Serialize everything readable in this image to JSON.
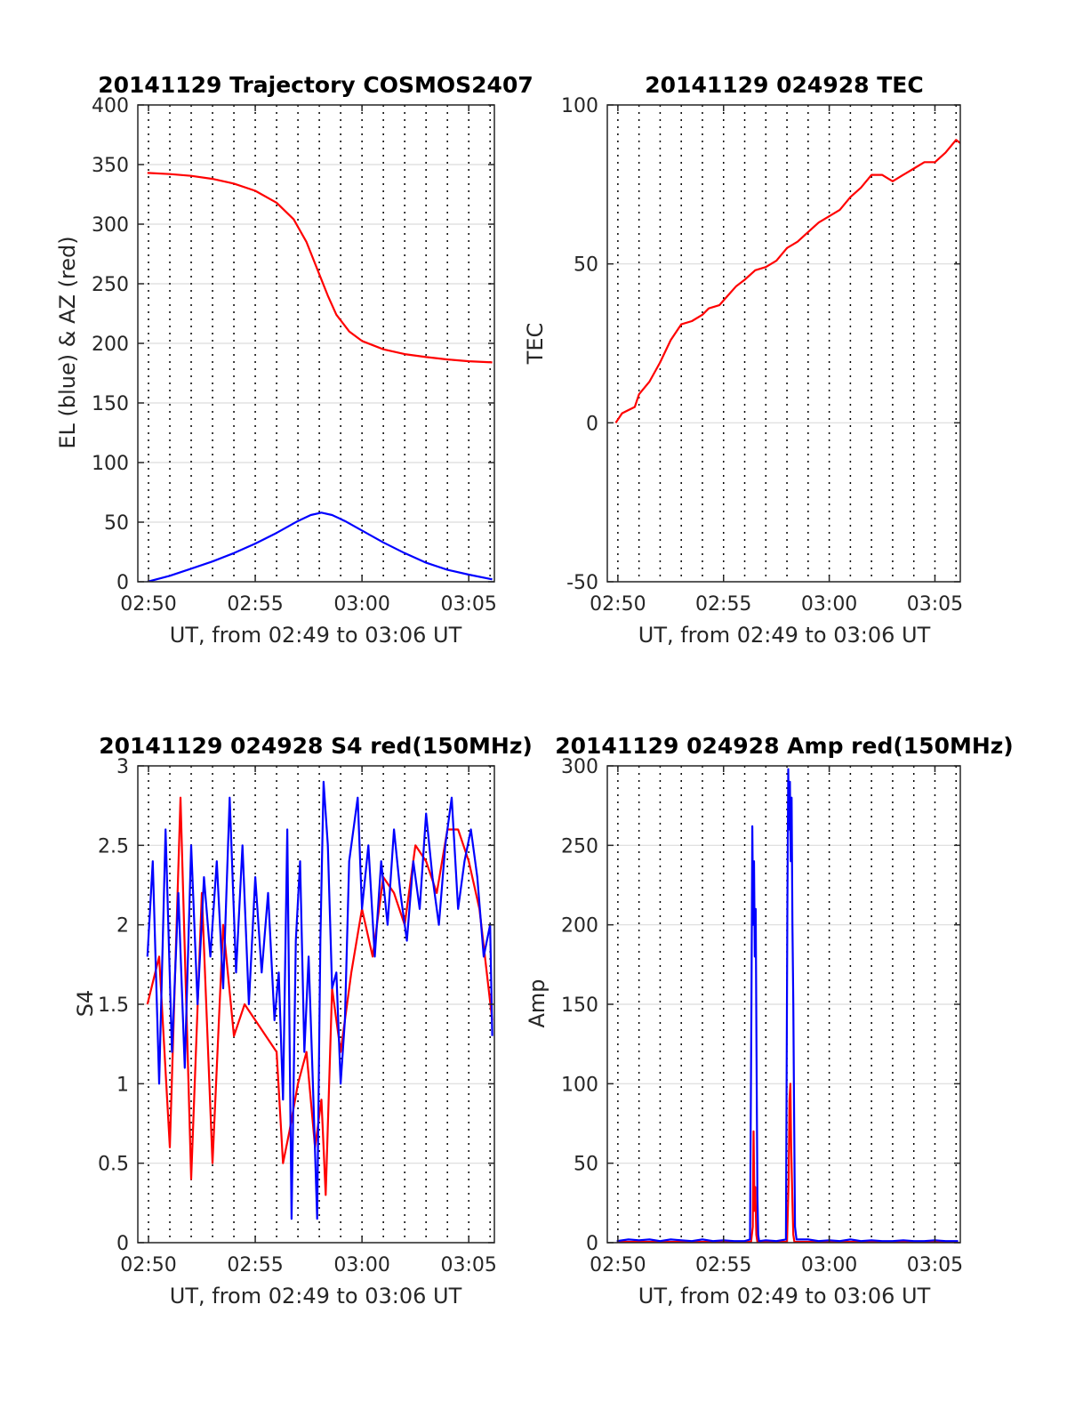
{
  "chart_data": [
    {
      "type": "line",
      "title": "20141129 Trajectory COSMOS2407",
      "xlabel": "UT, from 02:49 to 03:06 UT",
      "ylabel": "EL (blue) & AZ (red)",
      "xlim": [
        49.5,
        66.2
      ],
      "ylim": [
        0,
        400
      ],
      "xticks": [
        50,
        55,
        60,
        65
      ],
      "xtick_labels": [
        "02:50",
        "02:55",
        "03:00",
        "03:05"
      ],
      "yticks": [
        0,
        50,
        100,
        150,
        200,
        250,
        300,
        350,
        400
      ],
      "ytick_labels": [
        "0",
        "50",
        "100",
        "150",
        "200",
        "250",
        "300",
        "350",
        "400"
      ],
      "grid": true,
      "dotted_vlines": [
        50,
        51,
        52,
        53,
        54,
        55,
        56,
        57,
        58,
        59,
        60,
        61,
        62,
        63,
        64,
        65,
        66
      ],
      "series": [
        {
          "color": "#ff0000",
          "x": [
            49.95,
            51,
            52,
            53,
            54,
            55,
            56,
            56.8,
            57.4,
            58,
            58.4,
            58.8,
            59.4,
            60,
            61,
            62,
            63,
            64,
            65,
            66.1
          ],
          "y": [
            343,
            342,
            340.5,
            338,
            334,
            328,
            318,
            304,
            285,
            258,
            240,
            224,
            210,
            202,
            195,
            191,
            188.5,
            186.5,
            185,
            184
          ]
        },
        {
          "color": "#0000ff",
          "x": [
            49.95,
            51,
            52,
            53,
            54,
            55,
            56,
            57,
            57.6,
            58.1,
            58.6,
            59.2,
            60,
            61,
            62,
            63,
            64,
            65,
            66.1
          ],
          "y": [
            0,
            5,
            11,
            17,
            24,
            32,
            41,
            51,
            56,
            58,
            56,
            51,
            43,
            33,
            24,
            16,
            10,
            6,
            2
          ]
        }
      ]
    },
    {
      "type": "line",
      "title": "20141129 024928 TEC",
      "xlabel": "UT, from 02:49 to 03:06 UT",
      "ylabel": "TEC",
      "xlim": [
        49.5,
        66.2
      ],
      "ylim": [
        -50,
        100
      ],
      "xticks": [
        50,
        55,
        60,
        65
      ],
      "xtick_labels": [
        "02:50",
        "02:55",
        "03:00",
        "03:05"
      ],
      "yticks": [
        -50,
        0,
        50,
        100
      ],
      "ytick_labels": [
        "-50",
        "0",
        "50",
        "100"
      ],
      "grid": true,
      "dotted_vlines": [
        50,
        51,
        52,
        53,
        54,
        55,
        56,
        57,
        58,
        59,
        60,
        61,
        62,
        63,
        64,
        65,
        66
      ],
      "series": [
        {
          "color": "#ff0000",
          "x": [
            49.9,
            50.2,
            50.5,
            50.8,
            51,
            51.5,
            52,
            52.5,
            53,
            53.5,
            54,
            54.3,
            54.8,
            55.2,
            55.6,
            56,
            56.5,
            57,
            57.5,
            58,
            58.5,
            59,
            59.5,
            60,
            60.5,
            61,
            61.5,
            62,
            62.5,
            63,
            63.5,
            64,
            64.5,
            65,
            65.5,
            66,
            66.2
          ],
          "y": [
            0,
            3,
            4,
            5,
            9,
            13,
            19,
            26,
            31,
            32,
            34,
            36,
            37,
            40,
            43,
            45,
            48,
            49,
            51,
            55,
            57,
            60,
            63,
            65,
            67,
            71,
            74,
            78,
            78,
            76,
            78,
            80,
            82,
            82,
            85,
            89,
            88
          ]
        }
      ]
    },
    {
      "type": "line",
      "title": "20141129 024928 S4 red(150MHz)",
      "xlabel": "UT, from 02:49 to 03:06 UT",
      "ylabel": "S4",
      "xlim": [
        49.5,
        66.2
      ],
      "ylim": [
        0,
        3
      ],
      "xticks": [
        50,
        55,
        60,
        65
      ],
      "xtick_labels": [
        "02:50",
        "02:55",
        "03:00",
        "03:05"
      ],
      "yticks": [
        0,
        0.5,
        1,
        1.5,
        2,
        2.5,
        3
      ],
      "ytick_labels": [
        "0",
        "0.5",
        "1",
        "1.5",
        "2",
        "2.5",
        "3"
      ],
      "grid": true,
      "dotted_vlines": [
        50,
        51,
        52,
        53,
        54,
        55,
        56,
        57,
        58,
        59,
        60,
        61,
        62,
        63,
        64,
        65,
        66
      ],
      "series": [
        {
          "color": "#ff0000",
          "x": [
            49.95,
            50.5,
            51,
            51.5,
            52,
            52.5,
            53,
            53.5,
            54,
            54.5,
            55,
            55.5,
            56,
            56.3,
            56.6,
            57,
            57.4,
            57.8,
            58.1,
            58.3,
            58.6,
            59,
            59.5,
            60,
            60.5,
            61,
            61.5,
            62,
            62.5,
            63,
            63.5,
            64,
            64.5,
            65,
            65.5,
            66.1
          ],
          "y": [
            1.5,
            1.8,
            0.6,
            2.8,
            0.4,
            2.2,
            0.5,
            2.0,
            1.3,
            1.5,
            1.4,
            1.3,
            1.2,
            0.5,
            0.7,
            1.0,
            1.2,
            0.6,
            0.9,
            0.3,
            1.6,
            1.2,
            1.7,
            2.1,
            1.8,
            2.3,
            2.2,
            2.0,
            2.5,
            2.4,
            2.2,
            2.6,
            2.6,
            2.4,
            2.1,
            1.4
          ]
        },
        {
          "color": "#0000ff",
          "x": [
            49.95,
            50.2,
            50.5,
            50.8,
            51.1,
            51.4,
            51.7,
            52,
            52.3,
            52.6,
            52.9,
            53.2,
            53.5,
            53.8,
            54.1,
            54.4,
            54.7,
            55,
            55.3,
            55.6,
            55.9,
            56.1,
            56.3,
            56.5,
            56.7,
            56.9,
            57.1,
            57.3,
            57.5,
            57.7,
            57.9,
            58.05,
            58.2,
            58.4,
            58.6,
            58.8,
            59,
            59.2,
            59.4,
            59.6,
            59.8,
            60,
            60.3,
            60.6,
            60.9,
            61.2,
            61.5,
            61.8,
            62.1,
            62.4,
            62.7,
            63,
            63.3,
            63.6,
            63.9,
            64.2,
            64.5,
            64.8,
            65.1,
            65.4,
            65.7,
            66,
            66.1
          ],
          "y": [
            1.8,
            2.4,
            1.0,
            2.6,
            1.2,
            2.2,
            1.1,
            2.5,
            1.5,
            2.3,
            1.8,
            2.4,
            1.6,
            2.8,
            1.7,
            2.5,
            1.5,
            2.3,
            1.7,
            2.2,
            1.4,
            1.7,
            0.9,
            2.6,
            0.15,
            1.9,
            2.4,
            1.2,
            1.8,
            1.0,
            0.15,
            1.9,
            2.9,
            2.5,
            1.6,
            1.7,
            1.0,
            1.4,
            2.4,
            2.6,
            2.8,
            2.1,
            2.5,
            1.8,
            2.4,
            2.0,
            2.6,
            2.2,
            1.9,
            2.4,
            2.1,
            2.7,
            2.3,
            2.0,
            2.5,
            2.8,
            2.1,
            2.4,
            2.6,
            2.3,
            1.8,
            2.0,
            1.3
          ]
        }
      ]
    },
    {
      "type": "line",
      "title": "20141129 024928 Amp red(150MHz)",
      "xlabel": "UT, from 02:49 to 03:06 UT",
      "ylabel": "Amp",
      "xlim": [
        49.5,
        66.2
      ],
      "ylim": [
        0,
        300
      ],
      "xticks": [
        50,
        55,
        60,
        65
      ],
      "xtick_labels": [
        "02:50",
        "02:55",
        "03:00",
        "03:05"
      ],
      "yticks": [
        0,
        50,
        100,
        150,
        200,
        250,
        300
      ],
      "ytick_labels": [
        "0",
        "50",
        "100",
        "150",
        "200",
        "250",
        "300"
      ],
      "grid": true,
      "dotted_vlines": [
        50,
        51,
        52,
        53,
        54,
        55,
        56,
        57,
        58,
        59,
        60,
        61,
        62,
        63,
        64,
        65,
        66
      ],
      "series": [
        {
          "color": "#ff0000",
          "x": [
            49.95,
            56.3,
            56.38,
            56.42,
            56.46,
            56.5,
            56.55,
            56.6,
            58,
            58.08,
            58.12,
            58.16,
            58.2,
            58.25,
            58.3,
            58.35,
            66.1
          ],
          "y": [
            0.5,
            0.5,
            10,
            70,
            20,
            35,
            5,
            0.5,
            0.5,
            40,
            90,
            100,
            60,
            30,
            5,
            0.5,
            0.5
          ]
        },
        {
          "color": "#0000ff",
          "x": [
            49.95,
            50.5,
            51,
            51.5,
            52,
            52.5,
            53,
            53.5,
            54,
            54.5,
            55,
            55.5,
            56,
            56.25,
            56.32,
            56.36,
            56.4,
            56.44,
            56.48,
            56.52,
            56.56,
            56.6,
            56.64,
            56.68,
            57,
            57.5,
            57.95,
            58.02,
            58.06,
            58.1,
            58.14,
            58.18,
            58.22,
            58.26,
            58.3,
            58.34,
            58.38,
            58.45,
            59,
            59.5,
            60,
            60.5,
            61,
            61.5,
            62,
            62.5,
            63,
            63.5,
            64,
            64.5,
            65,
            65.5,
            66.1
          ],
          "y": [
            1,
            2,
            1.5,
            2,
            1,
            2,
            1.5,
            1,
            2,
            1,
            1.5,
            1,
            1,
            2,
            150,
            262,
            200,
            240,
            180,
            210,
            120,
            30,
            5,
            1,
            1.5,
            1,
            2,
            210,
            298,
            260,
            290,
            240,
            280,
            200,
            150,
            80,
            10,
            2,
            2,
            1,
            1.5,
            1,
            2,
            1,
            1.5,
            1,
            1,
            1.5,
            1,
            1,
            1.5,
            1,
            1
          ]
        }
      ]
    }
  ]
}
